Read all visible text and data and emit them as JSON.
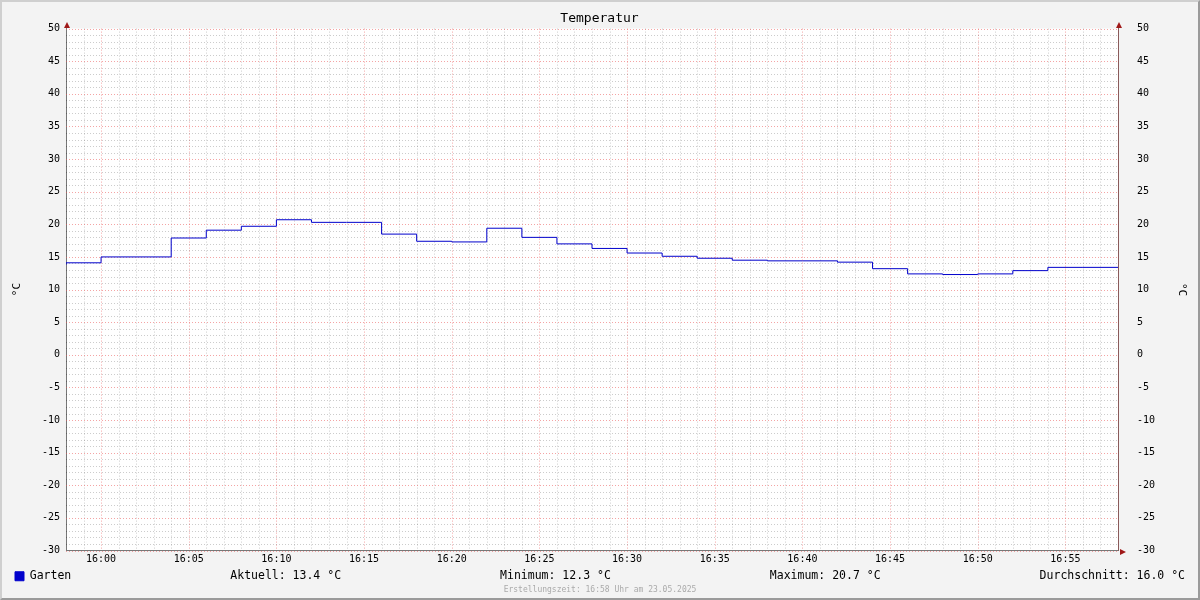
{
  "chart_data": {
    "type": "step",
    "title": "Temperatur",
    "ylabel": "°C",
    "y2label": "°C",
    "x": [
      "2025-05-23T15:58",
      "2025-05-23T16:00",
      "2025-05-23T16:02",
      "2025-05-23T16:04",
      "2025-05-23T16:06",
      "2025-05-23T16:08",
      "2025-05-23T16:10",
      "2025-05-23T16:12",
      "2025-05-23T16:14",
      "2025-05-23T16:16",
      "2025-05-23T16:18",
      "2025-05-23T16:20",
      "2025-05-23T16:22",
      "2025-05-23T16:24",
      "2025-05-23T16:26",
      "2025-05-23T16:28",
      "2025-05-23T16:30",
      "2025-05-23T16:32",
      "2025-05-23T16:34",
      "2025-05-23T16:36",
      "2025-05-23T16:38",
      "2025-05-23T16:40",
      "2025-05-23T16:42",
      "2025-05-23T16:44",
      "2025-05-23T16:46",
      "2025-05-23T16:48",
      "2025-05-23T16:50",
      "2025-05-23T16:52",
      "2025-05-23T16:54",
      "2025-05-23T16:56",
      "2025-05-23T16:58"
    ],
    "series": [
      {
        "name": "Garten",
        "color": "#0000cc",
        "values": [
          13.8,
          14.1,
          15.0,
          15.0,
          17.9,
          19.1,
          19.7,
          20.7,
          20.3,
          20.3,
          18.5,
          17.4,
          17.3,
          19.4,
          18.0,
          17.0,
          16.3,
          15.6,
          15.1,
          14.8,
          14.5,
          14.4,
          14.4,
          14.2,
          13.2,
          12.4,
          12.3,
          12.4,
          12.9,
          13.4,
          13.4
        ]
      }
    ],
    "xlim": [
      "2025-05-23T15:58",
      "2025-05-23T16:58"
    ],
    "xticks": [
      {
        "value": "2025-05-23T15:59",
        "label": null
      },
      {
        "value": "2025-05-23T16:00",
        "label": "16:00"
      },
      {
        "value": "2025-05-23T16:01",
        "label": null
      },
      {
        "value": "2025-05-23T16:02",
        "label": null
      },
      {
        "value": "2025-05-23T16:03",
        "label": null
      },
      {
        "value": "2025-05-23T16:04",
        "label": null
      },
      {
        "value": "2025-05-23T16:05",
        "label": "16:05"
      },
      {
        "value": "2025-05-23T16:06",
        "label": null
      },
      {
        "value": "2025-05-23T16:07",
        "label": null
      },
      {
        "value": "2025-05-23T16:08",
        "label": null
      },
      {
        "value": "2025-05-23T16:09",
        "label": null
      },
      {
        "value": "2025-05-23T16:10",
        "label": "16:10"
      },
      {
        "value": "2025-05-23T16:11",
        "label": null
      },
      {
        "value": "2025-05-23T16:12",
        "label": null
      },
      {
        "value": "2025-05-23T16:13",
        "label": null
      },
      {
        "value": "2025-05-23T16:14",
        "label": null
      },
      {
        "value": "2025-05-23T16:15",
        "label": "16:15"
      },
      {
        "value": "2025-05-23T16:16",
        "label": null
      },
      {
        "value": "2025-05-23T16:17",
        "label": null
      },
      {
        "value": "2025-05-23T16:18",
        "label": null
      },
      {
        "value": "2025-05-23T16:19",
        "label": null
      },
      {
        "value": "2025-05-23T16:20",
        "label": "16:20"
      },
      {
        "value": "2025-05-23T16:21",
        "label": null
      },
      {
        "value": "2025-05-23T16:22",
        "label": null
      },
      {
        "value": "2025-05-23T16:23",
        "label": null
      },
      {
        "value": "2025-05-23T16:24",
        "label": null
      },
      {
        "value": "2025-05-23T16:25",
        "label": "16:25"
      },
      {
        "value": "2025-05-23T16:26",
        "label": null
      },
      {
        "value": "2025-05-23T16:27",
        "label": null
      },
      {
        "value": "2025-05-23T16:28",
        "label": null
      },
      {
        "value": "2025-05-23T16:29",
        "label": null
      },
      {
        "value": "2025-05-23T16:30",
        "label": "16:30"
      },
      {
        "value": "2025-05-23T16:31",
        "label": null
      },
      {
        "value": "2025-05-23T16:32",
        "label": null
      },
      {
        "value": "2025-05-23T16:33",
        "label": null
      },
      {
        "value": "2025-05-23T16:34",
        "label": null
      },
      {
        "value": "2025-05-23T16:35",
        "label": "16:35"
      },
      {
        "value": "2025-05-23T16:36",
        "label": null
      },
      {
        "value": "2025-05-23T16:37",
        "label": null
      },
      {
        "value": "2025-05-23T16:38",
        "label": null
      },
      {
        "value": "2025-05-23T16:39",
        "label": null
      },
      {
        "value": "2025-05-23T16:40",
        "label": "16:40"
      },
      {
        "value": "2025-05-23T16:41",
        "label": null
      },
      {
        "value": "2025-05-23T16:42",
        "label": null
      },
      {
        "value": "2025-05-23T16:43",
        "label": null
      },
      {
        "value": "2025-05-23T16:44",
        "label": null
      },
      {
        "value": "2025-05-23T16:45",
        "label": "16:45"
      },
      {
        "value": "2025-05-23T16:46",
        "label": null
      },
      {
        "value": "2025-05-23T16:47",
        "label": null
      },
      {
        "value": "2025-05-23T16:48",
        "label": null
      },
      {
        "value": "2025-05-23T16:49",
        "label": null
      },
      {
        "value": "2025-05-23T16:50",
        "label": "16:50"
      },
      {
        "value": "2025-05-23T16:51",
        "label": null
      },
      {
        "value": "2025-05-23T16:52",
        "label": null
      },
      {
        "value": "2025-05-23T16:53",
        "label": null
      },
      {
        "value": "2025-05-23T16:54",
        "label": null
      },
      {
        "value": "2025-05-23T16:55",
        "label": "16:55"
      },
      {
        "value": "2025-05-23T16:56",
        "label": null
      },
      {
        "value": "2025-05-23T16:57",
        "label": null
      }
    ],
    "ylim": [
      -30,
      50
    ],
    "yticks": [
      -30,
      {
        "value": -29,
        "label": null
      },
      {
        "value": -28,
        "label": null
      },
      {
        "value": -27,
        "label": null
      },
      {
        "value": -26,
        "label": null
      },
      -25,
      {
        "value": -24,
        "label": null
      },
      {
        "value": -23,
        "label": null
      },
      {
        "value": -22,
        "label": null
      },
      {
        "value": -21,
        "label": null
      },
      -20,
      {
        "value": -19,
        "label": null
      },
      {
        "value": -18,
        "label": null
      },
      {
        "value": -17,
        "label": null
      },
      {
        "value": -16,
        "label": null
      },
      -15,
      {
        "value": -14,
        "label": null
      },
      {
        "value": -13,
        "label": null
      },
      {
        "value": -12,
        "label": null
      },
      {
        "value": -11,
        "label": null
      },
      -10,
      {
        "value": -9,
        "label": null
      },
      {
        "value": -8,
        "label": null
      },
      {
        "value": -7,
        "label": null
      },
      {
        "value": -6,
        "label": null
      },
      -5,
      {
        "value": -4,
        "label": null
      },
      {
        "value": -3,
        "label": null
      },
      {
        "value": -2,
        "label": null
      },
      {
        "value": -1,
        "label": null
      },
      0,
      {
        "value": 1,
        "label": null
      },
      {
        "value": 2,
        "label": null
      },
      {
        "value": 3,
        "label": null
      },
      {
        "value": 4,
        "label": null
      },
      5,
      {
        "value": 6,
        "label": null
      },
      {
        "value": 7,
        "label": null
      },
      {
        "value": 8,
        "label": null
      },
      {
        "value": 9,
        "label": null
      },
      10,
      {
        "value": 11,
        "label": null
      },
      {
        "value": 12,
        "label": null
      },
      {
        "value": 13,
        "label": null
      },
      {
        "value": 14,
        "label": null
      },
      15,
      {
        "value": 16,
        "label": null
      },
      {
        "value": 17,
        "label": null
      },
      {
        "value": 18,
        "label": null
      },
      {
        "value": 19,
        "label": null
      },
      20,
      {
        "value": 21,
        "label": null
      },
      {
        "value": 22,
        "label": null
      },
      {
        "value": 23,
        "label": null
      },
      {
        "value": 24,
        "label": null
      },
      25,
      {
        "value": 26,
        "label": null
      },
      {
        "value": 27,
        "label": null
      },
      {
        "value": 28,
        "label": null
      },
      {
        "value": 29,
        "label": null
      },
      30,
      {
        "value": 31,
        "label": null
      },
      {
        "value": 32,
        "label": null
      },
      {
        "value": 33,
        "label": null
      },
      {
        "value": 34,
        "label": null
      },
      35,
      {
        "value": 36,
        "label": null
      },
      {
        "value": 37,
        "label": null
      },
      {
        "value": 38,
        "label": null
      },
      {
        "value": 39,
        "label": null
      },
      40,
      {
        "value": 41,
        "label": null
      },
      {
        "value": 42,
        "label": null
      },
      {
        "value": 43,
        "label": null
      },
      {
        "value": 44,
        "label": null
      },
      45,
      {
        "value": 46,
        "label": null
      },
      {
        "value": 47,
        "label": null
      },
      {
        "value": 48,
        "label": null
      },
      {
        "value": 49,
        "label": null
      },
      50
    ],
    "y2lim": [
      -30,
      50
    ],
    "y2ticks": [
      -30,
      -25,
      -20,
      -15,
      -10,
      -5,
      0,
      5,
      10,
      15,
      20,
      25,
      30,
      35,
      40,
      45,
      50
    ],
    "grid": true,
    "legend": "bottom left",
    "annotations": [
      "Aktuell: 13.4 °C",
      "Minimum: 12.3 °C",
      "Maximum: 20.7 °C",
      "Durchschnitt: 16.0 °C",
      "Erstellungszeit: 16:58 Uhr am 23.05.2025"
    ]
  }
}
